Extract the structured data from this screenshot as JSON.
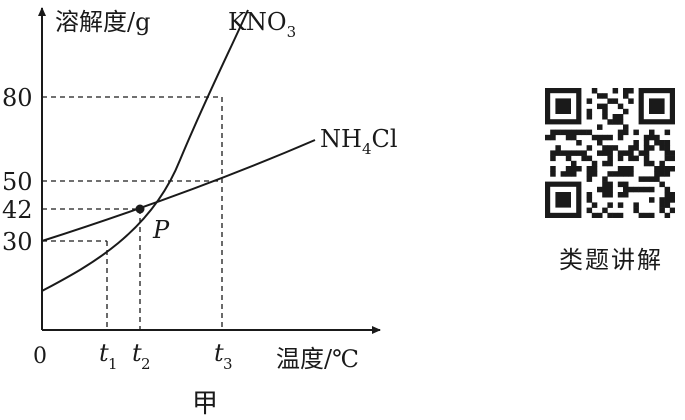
{
  "chart_data": {
    "type": "line",
    "ylabel": "溶解度/g",
    "xlabel": "温度/℃",
    "origin_label": "0",
    "caption": "甲",
    "y_ticks": [
      "30",
      "42",
      "50",
      "80"
    ],
    "x_ticks": [
      {
        "var": "t",
        "sub": "1"
      },
      {
        "var": "t",
        "sub": "2"
      },
      {
        "var": "t",
        "sub": "3"
      }
    ],
    "point_label": "P",
    "series": [
      {
        "name": "KNO",
        "sub": "3",
        "name_tail": "",
        "color": "#1a1a1a"
      },
      {
        "name": "NH",
        "sub": "4",
        "name_tail": "Cl",
        "color": "#1a1a1a"
      }
    ],
    "data": {
      "t1": {
        "KNO3": 30
      },
      "t2": {
        "KNO3": 42,
        "NH4Cl": 42
      },
      "t3": {
        "KNO3": 80,
        "NH4Cl": 50
      }
    }
  },
  "qr": {
    "caption": "类题讲解",
    "icon": "qr-code-icon"
  }
}
